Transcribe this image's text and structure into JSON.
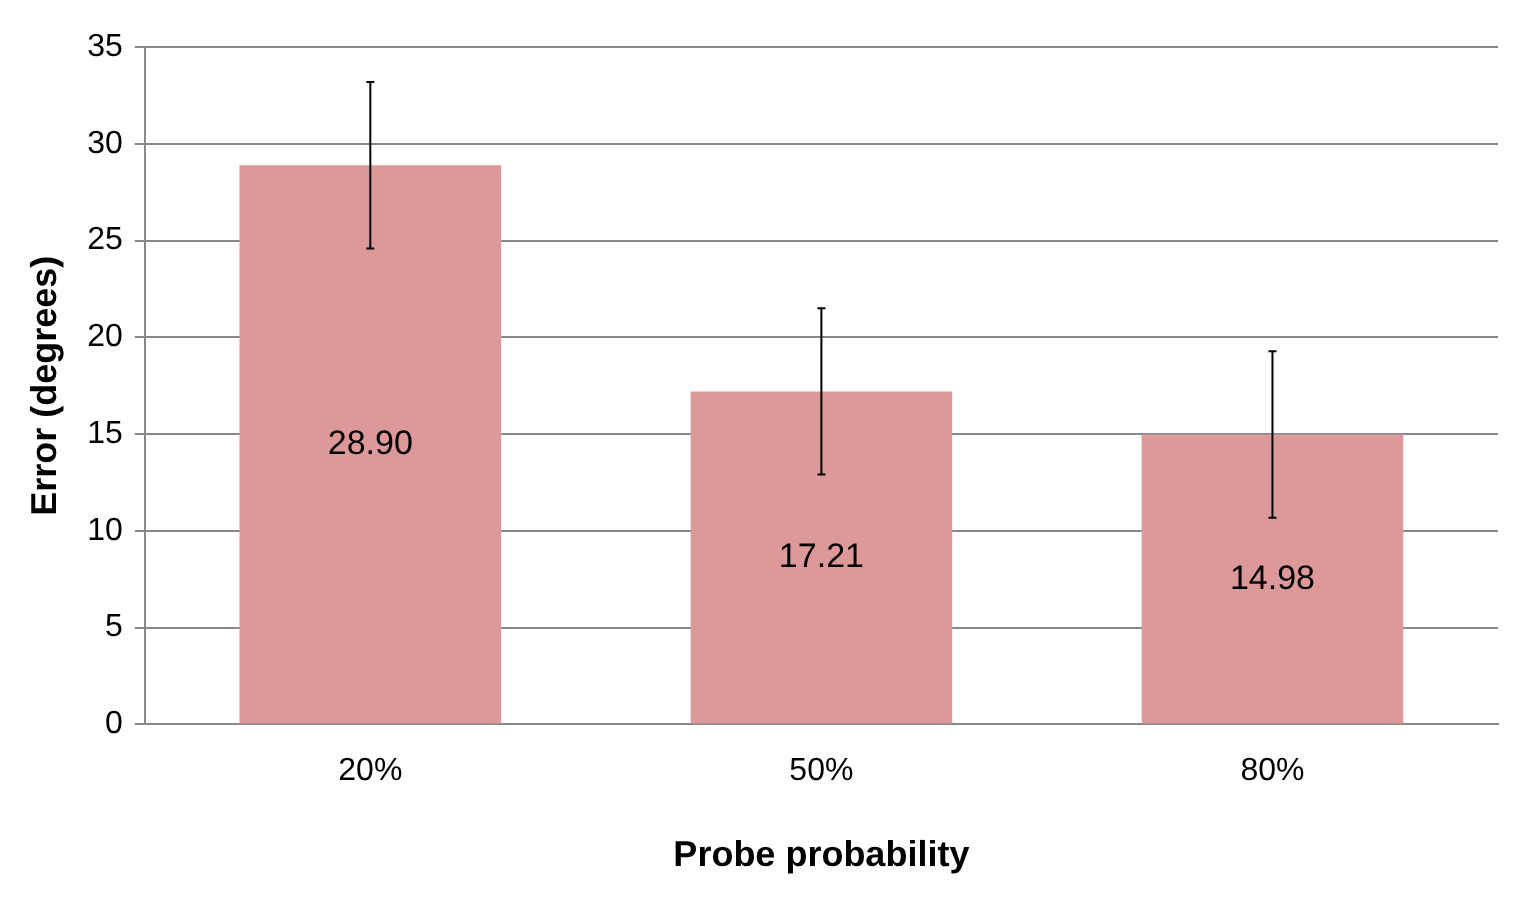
{
  "chart_data": {
    "type": "bar",
    "xlabel": "Probe probability",
    "ylabel": "Error (degrees)",
    "categories": [
      "20%",
      "50%",
      "80%"
    ],
    "values": [
      28.9,
      17.21,
      14.98
    ],
    "errors": [
      4.3,
      4.3,
      4.3
    ],
    "value_labels": [
      "28.90",
      "17.21",
      "14.98"
    ],
    "color": "#dd9999",
    "ylim": [
      0,
      35
    ],
    "yticks": [
      0,
      5,
      10,
      15,
      20,
      25,
      30,
      35
    ],
    "grid": "y",
    "legend": false
  }
}
